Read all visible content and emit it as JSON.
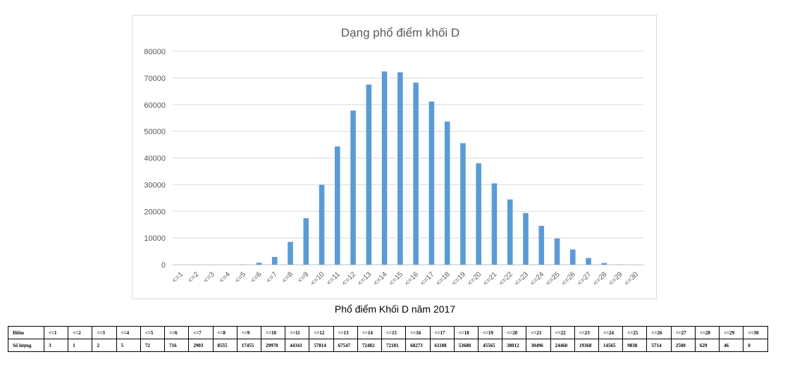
{
  "chart_data": {
    "type": "bar",
    "title": "Dạng phổ điểm khối D",
    "xlabel": "",
    "ylabel": "",
    "ylim": [
      0,
      80000
    ],
    "yticks": [
      0,
      10000,
      20000,
      30000,
      40000,
      50000,
      60000,
      70000,
      80000
    ],
    "grid": true,
    "categories": [
      "<=1",
      "<=2",
      "<=3",
      "<=4",
      "<=5",
      "<=6",
      "<=7",
      "<=8",
      "<=9",
      "<=10",
      "<=11",
      "<=12",
      "<=13",
      "<=14",
      "<=15",
      "<=16",
      "<=17",
      "<=18",
      "<=19",
      "<=20",
      "<=21",
      "<=22",
      "<=23",
      "<=24",
      "<=25",
      "<=26",
      "<=27",
      "<=28",
      "<=29",
      "<=30"
    ],
    "values": [
      3,
      1,
      2,
      5,
      72,
      716,
      2903,
      8555,
      17455,
      29970,
      44341,
      57814,
      67547,
      72482,
      72181,
      68273,
      61188,
      53680,
      45565,
      38012,
      30496,
      24460,
      19368,
      14565,
      9838,
      5714,
      2500,
      629,
      46,
      0
    ],
    "bar_color": "#5b9bd5"
  },
  "caption": "Phổ điểm Khối D năm 2017",
  "table": {
    "row1_label": "Điểm",
    "row2_label": "Số lượng",
    "headers": [
      "<=1",
      "<=2",
      "<=3",
      "<=4",
      "<=5",
      "<=6",
      "<=7",
      "<=8",
      "<=9",
      "<=10",
      "<=11",
      "<=12",
      "<=13",
      "<=14",
      "<=15",
      "<=16",
      "<=17",
      "<=18",
      "<=19",
      "<=20",
      "<=21",
      "<=22",
      "<=23",
      "<=24",
      "<=25",
      "<=26",
      "<=27",
      "<=28",
      "<=29",
      "<=30"
    ],
    "values": [
      "3",
      "1",
      "2",
      "5",
      "72",
      "716",
      "2903",
      "8555",
      "17455",
      "29970",
      "44341",
      "57814",
      "67547",
      "72482",
      "72181",
      "68273",
      "61188",
      "53680",
      "45565",
      "38012",
      "30496",
      "24460",
      "19368",
      "14565",
      "9838",
      "5714",
      "2500",
      "629",
      "46",
      "0"
    ]
  }
}
